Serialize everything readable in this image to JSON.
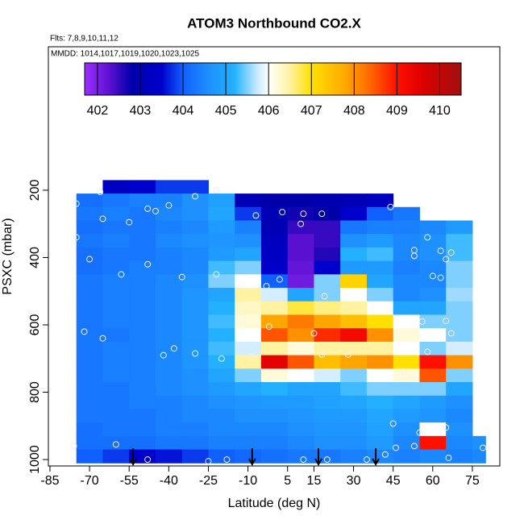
{
  "chart_data": {
    "type": "curtain",
    "title": "ATOM3 Northbound CO2.X",
    "flights_label": "Flts: 7,8,9,10,11,12",
    "dates_label": "MMDD: 1014,1017,1019,1020,1023,1025",
    "x_label": "Latitude (deg N)",
    "y_label": "PSXC (mbar)",
    "xlim": [
      -85.6,
      85.4
    ],
    "ylim": [
      1019,
      -226
    ],
    "xticks": [
      -85,
      -70,
      -55,
      -40,
      -25,
      -10,
      5,
      15,
      30,
      45,
      60,
      75
    ],
    "yticks": [
      200,
      400,
      600,
      800,
      1000
    ],
    "colorbar_lim": [
      401.7,
      410.5
    ],
    "colorbar_ticks": [
      402,
      403,
      404,
      405,
      406,
      407,
      408,
      409,
      410
    ],
    "colorscale": [
      [
        401.7,
        "#9b30ff"
      ],
      [
        402.3,
        "#5a10d0"
      ],
      [
        402.8,
        "#0000aa"
      ],
      [
        403.5,
        "#0000cd"
      ],
      [
        404,
        "#1060ff"
      ],
      [
        404.6,
        "#1e90ff"
      ],
      [
        405.2,
        "#22b0ff"
      ],
      [
        405.7,
        "#bfe6ff"
      ],
      [
        406,
        "#ffffff"
      ],
      [
        406.5,
        "#fff2a0"
      ],
      [
        407,
        "#ffe000"
      ],
      [
        407.7,
        "#ffb000"
      ],
      [
        408.3,
        "#ff7000"
      ],
      [
        409,
        "#ff1000"
      ],
      [
        409.6,
        "#dd0000"
      ],
      [
        410.5,
        "#a01010"
      ]
    ],
    "lat_edges": [
      -75,
      -65,
      -55,
      -45,
      -35,
      -25,
      -15,
      -5,
      5,
      15,
      25,
      35,
      45,
      55,
      65,
      75,
      80
    ],
    "pressure_edges": [
      170,
      210,
      250,
      290,
      330,
      370,
      410,
      450,
      490,
      530,
      570,
      610,
      650,
      690,
      730,
      770,
      810,
      850,
      890,
      930,
      970,
      1010
    ],
    "values": [
      [
        null,
        403.3,
        403.5,
        403.8,
        403.8,
        null,
        null,
        null,
        null,
        null,
        null,
        null,
        null,
        null,
        null,
        null
      ],
      [
        404.2,
        404.3,
        404.4,
        404.4,
        404.6,
        404.9,
        403.0,
        402.8,
        402.8,
        402.9,
        403.0,
        403.2,
        null,
        null,
        null,
        null
      ],
      [
        404.3,
        404.4,
        404.3,
        404.5,
        404.6,
        405.0,
        403.8,
        403.0,
        402.7,
        402.8,
        403.5,
        404.0,
        404.3,
        null,
        null,
        null
      ],
      [
        404.2,
        404.3,
        404.3,
        404.4,
        404.5,
        404.8,
        404.4,
        403.0,
        402.5,
        402.5,
        404.3,
        404.4,
        404.4,
        404.5,
        404.8,
        null
      ],
      [
        404.3,
        404.4,
        404.3,
        404.5,
        404.6,
        404.7,
        404.6,
        403.2,
        402.3,
        402.5,
        404.6,
        404.8,
        404.5,
        404.6,
        405.3,
        null
      ],
      [
        404.2,
        404.3,
        404.3,
        404.4,
        404.5,
        404.8,
        405.0,
        403.3,
        402.3,
        402.6,
        405.2,
        405.3,
        404.5,
        404.6,
        405.3,
        null
      ],
      [
        404.2,
        404.3,
        404.4,
        404.4,
        404.5,
        405.3,
        405.5,
        403.4,
        402.2,
        403.5,
        404.8,
        404.8,
        404.4,
        404.5,
        405.5,
        null
      ],
      [
        404.3,
        404.4,
        404.4,
        404.5,
        404.6,
        405.5,
        406.0,
        404.0,
        402.1,
        405.5,
        407.2,
        405.0,
        404.5,
        404.5,
        405.5,
        null
      ],
      [
        404.3,
        404.4,
        404.4,
        404.5,
        404.7,
        405.0,
        406.5,
        405.8,
        405.0,
        405.5,
        406.0,
        405.5,
        404.5,
        404.6,
        405.6,
        null
      ],
      [
        404.3,
        404.4,
        404.4,
        404.5,
        404.7,
        405.2,
        406.3,
        406.5,
        406.8,
        406.6,
        406.5,
        406.0,
        405.0,
        405.0,
        405.5,
        null
      ],
      [
        404.3,
        404.4,
        404.4,
        404.5,
        404.7,
        405.3,
        406.2,
        407.8,
        408.2,
        407.8,
        407.5,
        407.0,
        406.0,
        405.5,
        405.5,
        null
      ],
      [
        404.3,
        404.3,
        404.4,
        404.5,
        404.7,
        405.2,
        406.0,
        408.5,
        408.0,
        408.8,
        409.2,
        408.0,
        406.2,
        406.0,
        405.5,
        null
      ],
      [
        404.3,
        404.4,
        404.4,
        404.5,
        404.7,
        405.3,
        405.8,
        406.5,
        406.2,
        406.5,
        406.5,
        406.5,
        406.0,
        405.5,
        405.8,
        null
      ],
      [
        404.3,
        404.4,
        404.4,
        404.5,
        404.7,
        405.2,
        406.5,
        409.5,
        408.5,
        407.5,
        407.8,
        408.0,
        407.0,
        409.0,
        408.0,
        null
      ],
      [
        404.3,
        404.4,
        404.4,
        404.5,
        404.6,
        405.0,
        405.5,
        406.2,
        406.0,
        405.8,
        405.5,
        406.0,
        406.2,
        408.5,
        405.5,
        null
      ],
      [
        404.3,
        404.3,
        404.4,
        404.5,
        404.6,
        404.8,
        405.0,
        405.2,
        405.0,
        405.0,
        405.3,
        405.5,
        405.5,
        405.5,
        405.0,
        null
      ],
      [
        404.3,
        404.3,
        404.4,
        404.4,
        404.5,
        404.6,
        404.7,
        404.8,
        404.8,
        404.9,
        405.0,
        405.2,
        405.0,
        404.8,
        404.6,
        null
      ],
      [
        404.3,
        404.3,
        404.3,
        404.4,
        404.5,
        404.5,
        404.6,
        404.6,
        404.7,
        404.8,
        404.8,
        405.0,
        404.8,
        404.7,
        404.5,
        null
      ],
      [
        404.2,
        404.3,
        404.3,
        404.4,
        404.4,
        404.5,
        404.5,
        404.5,
        404.6,
        404.7,
        404.7,
        404.9,
        404.6,
        406.0,
        404.6,
        null
      ],
      [
        404.2,
        404.2,
        404.2,
        404.3,
        404.3,
        404.4,
        404.4,
        404.4,
        404.5,
        404.6,
        404.6,
        404.8,
        404.5,
        409.0,
        404.5,
        404.6
      ],
      [
        404.0,
        403.8,
        403.5,
        403.6,
        403.8,
        404.0,
        404.1,
        404.2,
        404.3,
        404.3,
        404.4,
        404.5,
        404.4,
        404.5,
        404.4,
        404.5
      ]
    ],
    "samples": {
      "lat": [
        -66,
        -30,
        -22,
        -75,
        -48,
        -45,
        -65,
        -55,
        -40,
        -7,
        3,
        11,
        18,
        10,
        44,
        -75,
        -70,
        -48,
        -58,
        -35,
        -22,
        -3,
        2,
        19,
        53,
        58,
        63,
        65,
        60,
        63,
        67,
        -72,
        -65,
        -2,
        -38,
        -42,
        -30,
        -20,
        -9,
        15,
        18,
        28,
        49,
        58,
        67,
        -76,
        -60,
        -48,
        -25,
        -18,
        11,
        20,
        35,
        42,
        46,
        53,
        66,
        79,
        45,
        65,
        55,
        53,
        65,
        56
      ],
      "pressure": [
        205,
        218,
        200,
        240,
        255,
        262,
        285,
        295,
        245,
        275,
        265,
        270,
        270,
        300,
        250,
        340,
        405,
        420,
        450,
        458,
        450,
        485,
        465,
        515,
        378,
        340,
        380,
        405,
        455,
        460,
        385,
        620,
        640,
        605,
        670,
        690,
        685,
        700,
        695,
        625,
        688,
        688,
        738,
        680,
        625,
        960,
        955,
        1000,
        1005,
        1000,
        1000,
        1000,
        1000,
        985,
        965,
        960,
        995,
        965,
        893,
        905,
        920,
        395,
        588,
        590
      ]
    },
    "arrows": [
      -53.5,
      -8.4,
      16.7,
      38.4
    ]
  }
}
